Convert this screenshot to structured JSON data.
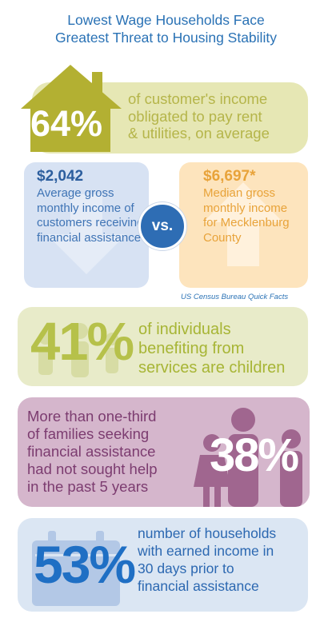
{
  "title": {
    "line1": "Lowest Wage Households Face",
    "line2": "Greatest Threat to Housing Stability"
  },
  "panel_income_share": {
    "stat": "64%",
    "text_line1": "of customer's income",
    "text_line2": "obligated to pay rent",
    "text_line3": "& utilities, on average",
    "icon": "house-icon"
  },
  "panel_customers_income": {
    "amount": "$2,042",
    "description": "Average gross monthly income of customers receiving financial assistance",
    "icon": "down-arrow-icon"
  },
  "vs_label": "vs.",
  "panel_median_income": {
    "amount": "$6,697*",
    "description": "Median gross monthly income for Mecklenburg County",
    "icon": "up-arrow-icon"
  },
  "source_note": "US Census Bureau Quick Facts",
  "panel_children": {
    "stat": "41%",
    "text_line1": "of individuals",
    "text_line2": "benefiting from",
    "text_line3": "services are children",
    "icon": "family-icon"
  },
  "panel_families": {
    "stat": "38%",
    "text_line1": "More than one-third",
    "text_line2": "of families seeking",
    "text_line3": "financial assistance",
    "text_line4": "had not sought help",
    "text_line5": "in the past 5 years",
    "icon": "family-icon"
  },
  "panel_earned_income": {
    "stat": "53%",
    "text_line1": "number of households",
    "text_line2": "with earned income in",
    "text_line3": "30 days prior to",
    "text_line4": "financial assistance",
    "icon": "calendar-icon"
  },
  "colors": {
    "title_blue": "#2a72b5",
    "olive": "#b5b54a",
    "panel_olive_bg": "#e6e7b4",
    "blue_bg": "#d7e2f3",
    "orange_bg": "#fde4bd",
    "orange_text": "#e8a33a",
    "purple_bg": "#d5b6cc",
    "purple_text": "#7c3c70",
    "light_blue_bg": "#dbe6f3"
  }
}
